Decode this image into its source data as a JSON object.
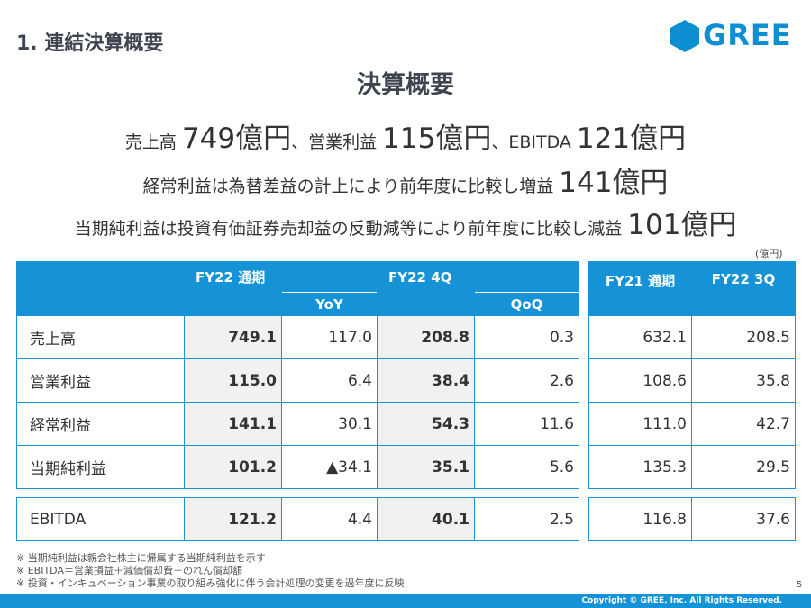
{
  "section_title": "1. 連結決算概要",
  "logo_text": "GREE",
  "slide_title": "決算概要",
  "headline1": {
    "p1": "売上高 ",
    "v1": "749億円",
    "p2": "、営業利益 ",
    "v2": "115億円",
    "p3": "、EBITDA ",
    "v3": "121億円"
  },
  "headline2": {
    "p1": "経常利益は為替差益の計上により前年度に比較し増益 ",
    "v1": "141億円"
  },
  "headline3": {
    "p1": "当期純利益は投資有価証券売却益の反動減等により前年度に比較し減益 ",
    "v1": "101億円"
  },
  "unit": "(億円)",
  "table": {
    "col_fy22": "FY22 通期",
    "col_yoy": "YoY",
    "col_fy22q4": "FY22 4Q",
    "col_qoq": "QoQ",
    "col_fy21": "FY21 通期",
    "col_fy22q3": "FY22 3Q",
    "rows": [
      {
        "label": "売上高",
        "fy22": "749.1",
        "yoy": "117.0",
        "q4": "208.8",
        "qoq": "0.3",
        "fy21": "632.1",
        "q3": "208.5"
      },
      {
        "label": "営業利益",
        "fy22": "115.0",
        "yoy": "6.4",
        "q4": "38.4",
        "qoq": "2.6",
        "fy21": "108.6",
        "q3": "35.8"
      },
      {
        "label": "経常利益",
        "fy22": "141.1",
        "yoy": "30.1",
        "q4": "54.3",
        "qoq": "11.6",
        "fy21": "111.0",
        "q3": "42.7"
      },
      {
        "label": "当期純利益",
        "fy22": "101.2",
        "yoy": "▲34.1",
        "q4": "35.1",
        "qoq": "5.6",
        "fy21": "135.3",
        "q3": "29.5"
      }
    ],
    "ebitda": {
      "label": "EBITDA",
      "fy22": "121.2",
      "yoy": "4.4",
      "q4": "40.1",
      "qoq": "2.5",
      "fy21": "116.8",
      "q3": "37.6"
    }
  },
  "footnotes": [
    "※ 当期純利益は親会社株主に帰属する当期純利益を示す",
    "※ EBITDA＝営業損益＋減価償却費＋のれん償却額",
    "※ 投資・インキュベーション事業の取り組み強化に伴う会計処理の変更を過年度に反映"
  ],
  "page_number": "5",
  "copyright": "Copyright © GREE, Inc. All Rights Reserved.",
  "colors": {
    "accent": "#1593d6",
    "logo": "#0e8fd3"
  }
}
